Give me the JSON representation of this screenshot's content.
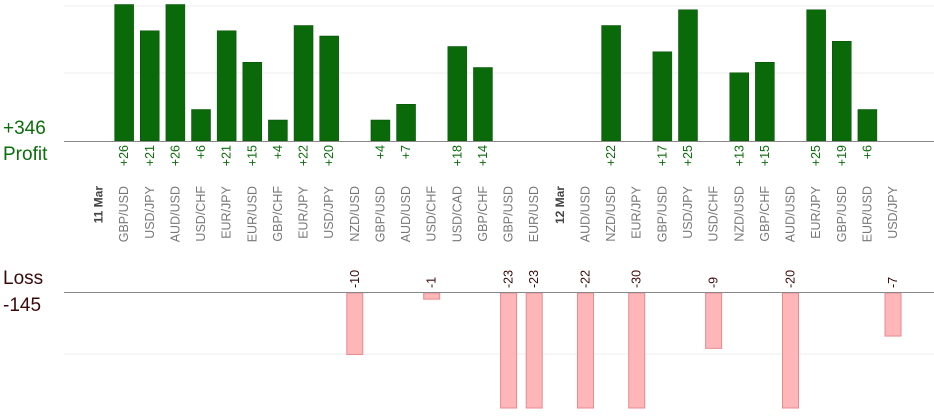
{
  "summary": {
    "profit_total": "+346",
    "profit_label": "Profit",
    "loss_label": "Loss",
    "loss_total": "-145"
  },
  "colors": {
    "profit_bar": "#0a6a0a",
    "profit_text": "#0a6e0a",
    "loss_bar_fill": "#ffb6b9",
    "loss_bar_stroke": "#e88a8e",
    "loss_text": "#3a0a0a",
    "category_text": "#777777",
    "date_text": "#444444",
    "grid": "#ececec",
    "axis": "#888888"
  },
  "chart_data": {
    "type": "bar",
    "grid": true,
    "categories": [
      "11 Mar",
      "GBP/USD",
      "USD/JPY",
      "AUD/USD",
      "USD/CHF",
      "EUR/JPY",
      "EUR/USD",
      "GBP/CHF",
      "EUR/JPY",
      "USD/JPY",
      "NZD/USD",
      "GBP/USD",
      "AUD/USD",
      "USD/CHF",
      "USD/CAD",
      "GBP/CHF",
      "GBP/USD",
      "EUR/USD",
      "12 Mar",
      "AUD/USD",
      "NZD/USD",
      "EUR/JPY",
      "GBP/USD",
      "USD/JPY",
      "USD/CHF",
      "NZD/USD",
      "GBP/CHF",
      "AUD/USD",
      "EUR/JPY",
      "GBP/USD",
      "EUR/USD",
      "USD/JPY"
    ],
    "date_markers": [
      "11 Mar",
      "12 Mar"
    ],
    "profit_labels": [
      "",
      "+26",
      "+21",
      "+26",
      "+6",
      "+21",
      "+15",
      "+4",
      "+22",
      "+20",
      "",
      "+4",
      "+7",
      "",
      "+18",
      "+14",
      "",
      "",
      "",
      "",
      "+22",
      "",
      "+17",
      "+25",
      "",
      "+13",
      "+15",
      "",
      "+25",
      "+19",
      "+6",
      ""
    ],
    "profit_values": [
      0,
      26,
      21,
      26,
      6,
      21,
      15,
      4,
      22,
      20,
      0,
      4,
      7,
      0,
      18,
      14,
      0,
      0,
      0,
      0,
      22,
      0,
      17,
      25,
      0,
      13,
      15,
      0,
      25,
      19,
      6,
      0
    ],
    "loss_labels": [
      "",
      "",
      "",
      "",
      "",
      "",
      "",
      "",
      "",
      "",
      "-10",
      "",
      "",
      "-1",
      "",
      "",
      "-23",
      "-23",
      "",
      "-22",
      "",
      "-30",
      "",
      "",
      "-9",
      "",
      "",
      "-20",
      "",
      "",
      "",
      "-7"
    ],
    "loss_values": [
      0,
      0,
      0,
      0,
      0,
      0,
      0,
      0,
      0,
      0,
      10,
      0,
      0,
      1,
      0,
      0,
      23,
      23,
      0,
      22,
      0,
      30,
      0,
      0,
      9,
      0,
      0,
      20,
      0,
      0,
      0,
      7
    ]
  }
}
